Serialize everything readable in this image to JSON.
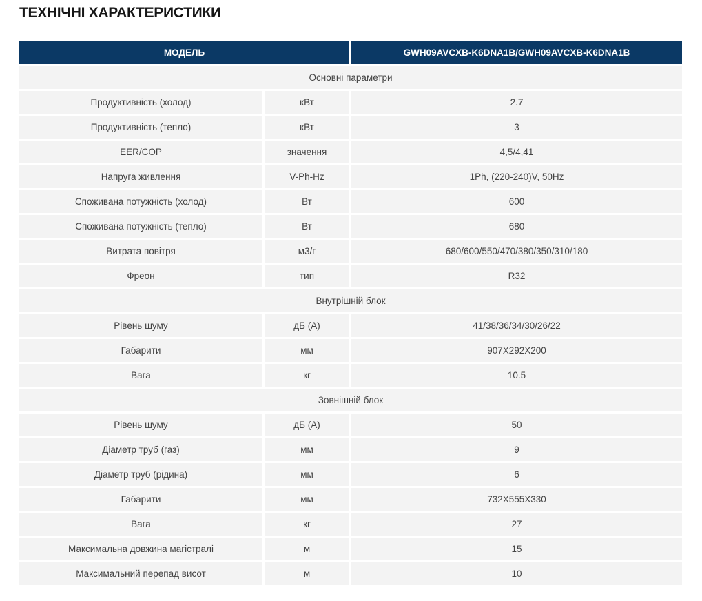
{
  "page_title": "ТЕХНІЧНІ ХАРАКТЕРИСТИКИ",
  "colors": {
    "header_bg": "#0b3965",
    "header_text": "#ffffff",
    "row_bg": "#f3f3f3",
    "cell_text": "#444444",
    "title_text": "#161616"
  },
  "table": {
    "header": {
      "model_label": "МОДЕЛЬ",
      "model_value": "GWH09AVCXB-K6DNA1B/GWH09AVCXB-K6DNA1B"
    },
    "sections": [
      {
        "title": "Основні параметри",
        "rows": [
          {
            "param": "Продуктивність (холод)",
            "unit": "кВт",
            "value": "2.7"
          },
          {
            "param": "Продуктивність (тепло)",
            "unit": "кВт",
            "value": "3"
          },
          {
            "param": "EER/COP",
            "unit": "значення",
            "value": "4,5/4,41"
          },
          {
            "param": "Напруга живлення",
            "unit": "V-Ph-Hz",
            "value": "1Ph, (220-240)V, 50Hz"
          },
          {
            "param": "Споживана потужність (холод)",
            "unit": "Вт",
            "value": "600"
          },
          {
            "param": "Споживана потужність (тепло)",
            "unit": "Вт",
            "value": "680"
          },
          {
            "param": "Витрата повітря",
            "unit": "м3/г",
            "value": "680/600/550/470/380/350/310/180"
          },
          {
            "param": "Фреон",
            "unit": "тип",
            "value": "R32"
          }
        ]
      },
      {
        "title": "Внутрішній блок",
        "rows": [
          {
            "param": "Рівень шуму",
            "unit": "дБ (А)",
            "value": "41/38/36/34/30/26/22"
          },
          {
            "param": "Габарити",
            "unit": "мм",
            "value": "907X292X200"
          },
          {
            "param": "Вага",
            "unit": "кг",
            "value": "10.5"
          }
        ]
      },
      {
        "title": "Зовнішній блок",
        "rows": [
          {
            "param": "Рівень шуму",
            "unit": "дБ (А)",
            "value": "50"
          },
          {
            "param": "Діаметр труб (газ)",
            "unit": "мм",
            "value": "9"
          },
          {
            "param": "Діаметр труб (рідина)",
            "unit": "мм",
            "value": "6"
          },
          {
            "param": "Габарити",
            "unit": "мм",
            "value": "732X555X330"
          },
          {
            "param": "Вага",
            "unit": "кг",
            "value": "27"
          },
          {
            "param": "Максимальна довжина магістралі",
            "unit": "м",
            "value": "15"
          },
          {
            "param": "Максимальний перепад висот",
            "unit": "м",
            "value": "10"
          }
        ]
      }
    ]
  }
}
